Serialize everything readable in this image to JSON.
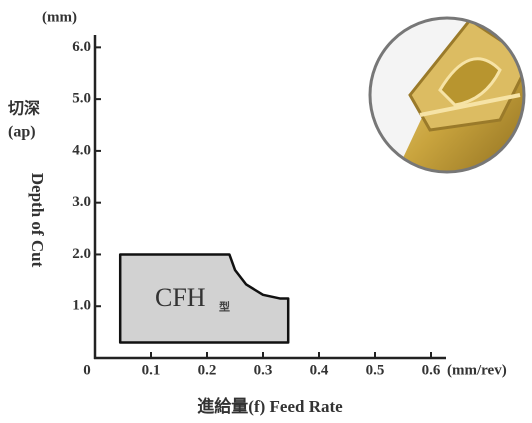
{
  "chart_data": {
    "type": "region",
    "y_unit": "(mm)",
    "y_label_cn": "切深",
    "y_label_symbol": "(ap)",
    "y_label": "Depth of Cut",
    "x_unit": "(mm/rev)",
    "x_label": "進給量(f) Feed Rate",
    "region_name": "CFH",
    "region_suffix": "型",
    "x": [
      0.045,
      0.24,
      0.25,
      0.27,
      0.3,
      0.33,
      0.345,
      0.345,
      0.045
    ],
    "y": [
      2.0,
      2.0,
      1.7,
      1.42,
      1.22,
      1.15,
      1.15,
      0.3,
      0.3
    ],
    "color": "#d2d2d2",
    "xlim": [
      0,
      0.625
    ],
    "ylim": [
      0,
      6.2
    ],
    "xticks": [
      0,
      0.1,
      0.2,
      0.3,
      0.4,
      0.5,
      0.6
    ],
    "yticks": [
      {
        "value": 1,
        "label": "1.0"
      },
      {
        "value": 2,
        "label": "2.0"
      },
      {
        "value": 3,
        "label": "3.0"
      },
      {
        "value": 4,
        "label": "4.0"
      },
      {
        "value": 5,
        "label": "5.0"
      },
      {
        "value": 6,
        "label": "6.0"
      }
    ],
    "grid": false
  }
}
